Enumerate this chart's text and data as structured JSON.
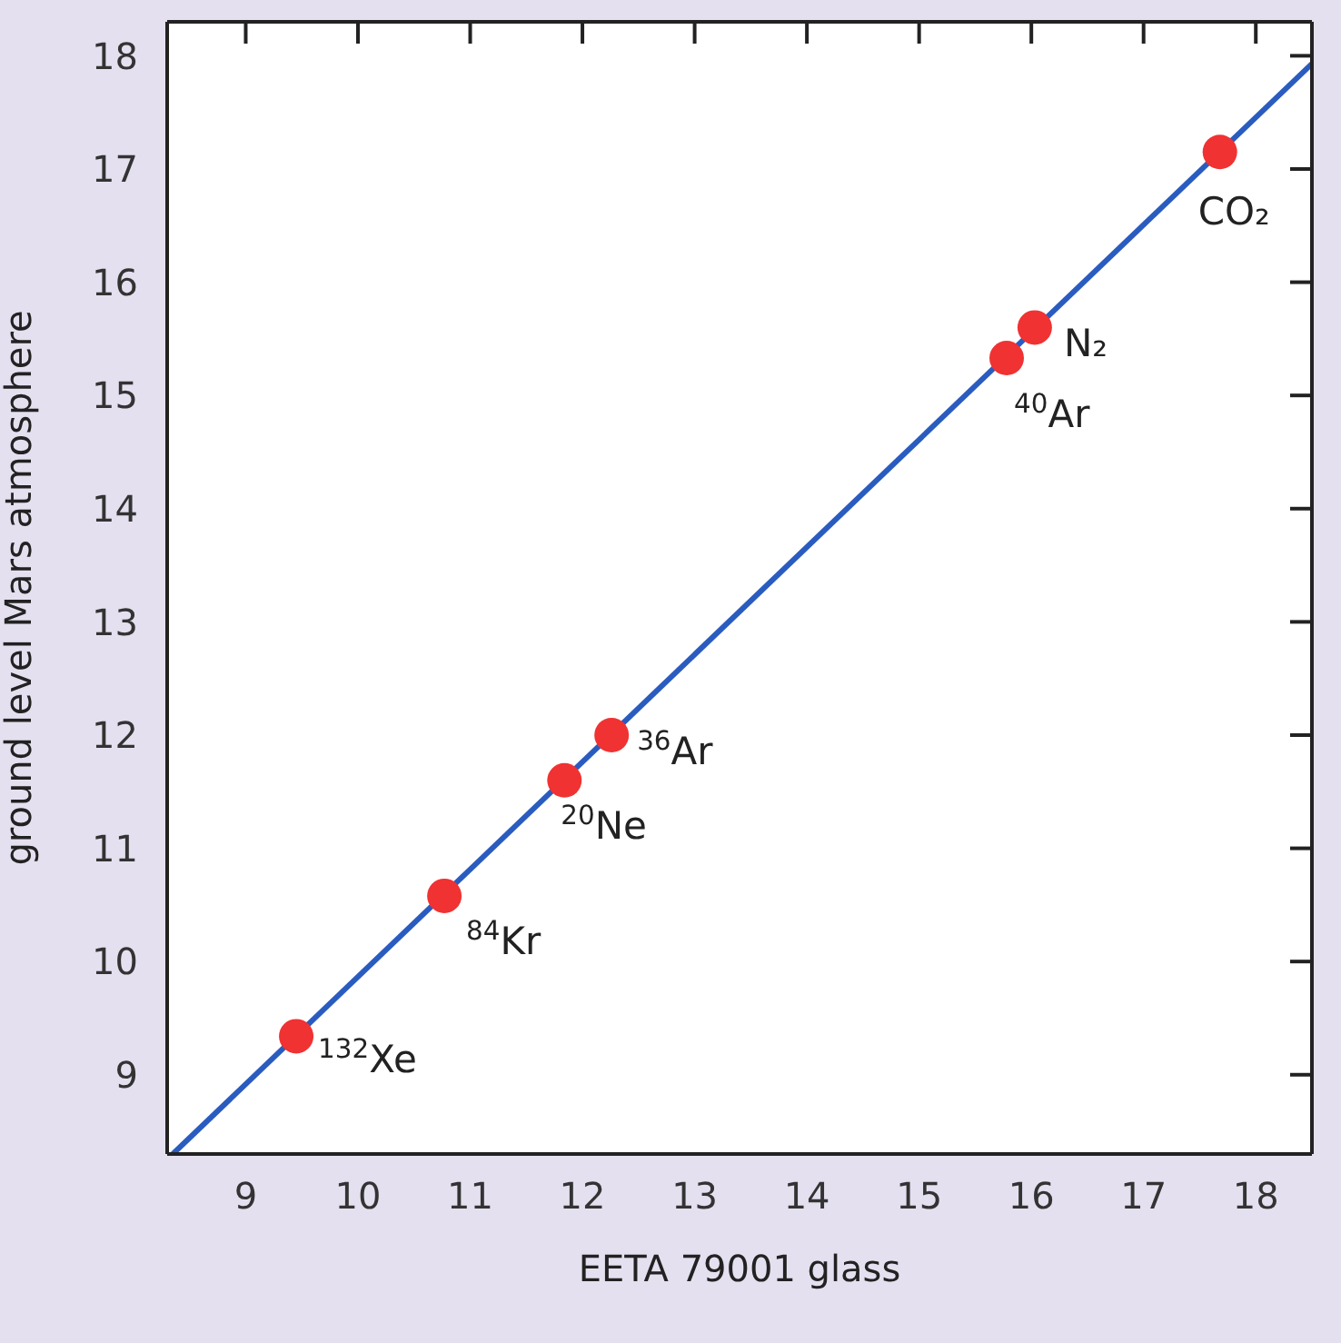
{
  "chart_data": {
    "type": "scatter",
    "xlabel": "EETA 79001 glass",
    "ylabel": "ground level Mars atmosphere",
    "xlim": [
      8.3,
      18.5
    ],
    "ylim": [
      8.3,
      18.3
    ],
    "xticks": [
      9,
      10,
      11,
      12,
      13,
      14,
      15,
      16,
      17,
      18
    ],
    "yticks": [
      9,
      10,
      11,
      12,
      13,
      14,
      15,
      16,
      17,
      18
    ],
    "line_style": "solid",
    "series": [
      {
        "color": "#f03232",
        "x": [
          9.45,
          10.77,
          11.84,
          12.26,
          15.78,
          16.03,
          17.68
        ],
        "values": [
          9.34,
          10.58,
          11.6,
          12.0,
          15.33,
          15.6,
          17.15
        ]
      },
      {
        "type": "line",
        "color": "#2a5cc0",
        "x": [
          8.35,
          18.5
        ],
        "values": [
          8.3,
          17.93
        ]
      }
    ],
    "annotations": [
      {
        "text": "$^{132}$Xe",
        "x": 9.45,
        "y": 9.34
      },
      {
        "text": "$^{84}$Kr",
        "x": 10.77,
        "y": 10.58
      },
      {
        "text": "$^{20}$Ne",
        "x": 11.84,
        "y": 11.6
      },
      {
        "text": "$^{36}$Ar",
        "x": 12.26,
        "y": 12.0
      },
      {
        "text": "$^{40}$Ar",
        "x": 15.78,
        "y": 15.33
      },
      {
        "text": "N₂",
        "x": 16.03,
        "y": 15.6
      },
      {
        "text": "CO₂",
        "x": 17.68,
        "y": 17.15
      }
    ]
  }
}
